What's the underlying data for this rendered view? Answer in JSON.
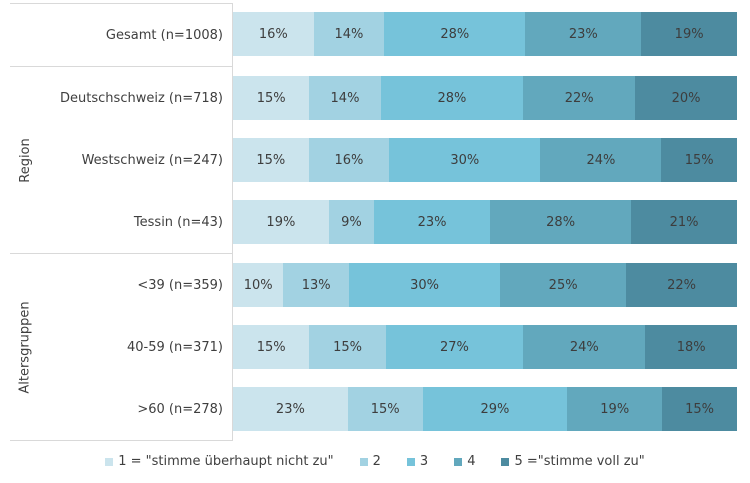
{
  "chart_data": {
    "type": "bar",
    "variant": "horizontal-stacked-100",
    "title": "",
    "xlabel": "",
    "ylabel": "",
    "xlim": [
      0,
      100
    ],
    "grid": false,
    "value_suffix": "%",
    "legend_position": "bottom",
    "legend": [
      {
        "label": "1 = \"stimme überhaupt nicht zu\"",
        "color": "#cbe4ed"
      },
      {
        "label": "2",
        "color": "#a2d2e2"
      },
      {
        "label": "3",
        "color": "#76c3da"
      },
      {
        "label": "4",
        "color": "#62a8bd"
      },
      {
        "label": "5 =\"stimme voll zu\"",
        "color": "#4d8ba0"
      }
    ],
    "groups": [
      {
        "label": "",
        "rows": [
          {
            "label": "Gesamt (n=1008)",
            "values": [
              16,
              14,
              28,
              23,
              19
            ]
          }
        ]
      },
      {
        "label": "Region",
        "rows": [
          {
            "label": "Deutschschweiz (n=718)",
            "values": [
              15,
              14,
              28,
              22,
              20
            ]
          },
          {
            "label": "Westschweiz (n=247)",
            "values": [
              15,
              16,
              30,
              24,
              15
            ]
          },
          {
            "label": "Tessin (n=43)",
            "values": [
              19,
              9,
              23,
              28,
              21
            ]
          }
        ]
      },
      {
        "label": "Altersgruppen",
        "rows": [
          {
            "label": "<39 (n=359)",
            "values": [
              10,
              13,
              30,
              25,
              22
            ]
          },
          {
            "label": "40-59 (n=371)",
            "values": [
              15,
              15,
              27,
              24,
              18
            ]
          },
          {
            "label": ">60 (n=278)",
            "values": [
              23,
              15,
              29,
              19,
              15
            ]
          }
        ]
      }
    ],
    "colors": {
      "border": "#d9d9d9",
      "text": "#3f3f3f",
      "background": "#ffffff"
    }
  }
}
